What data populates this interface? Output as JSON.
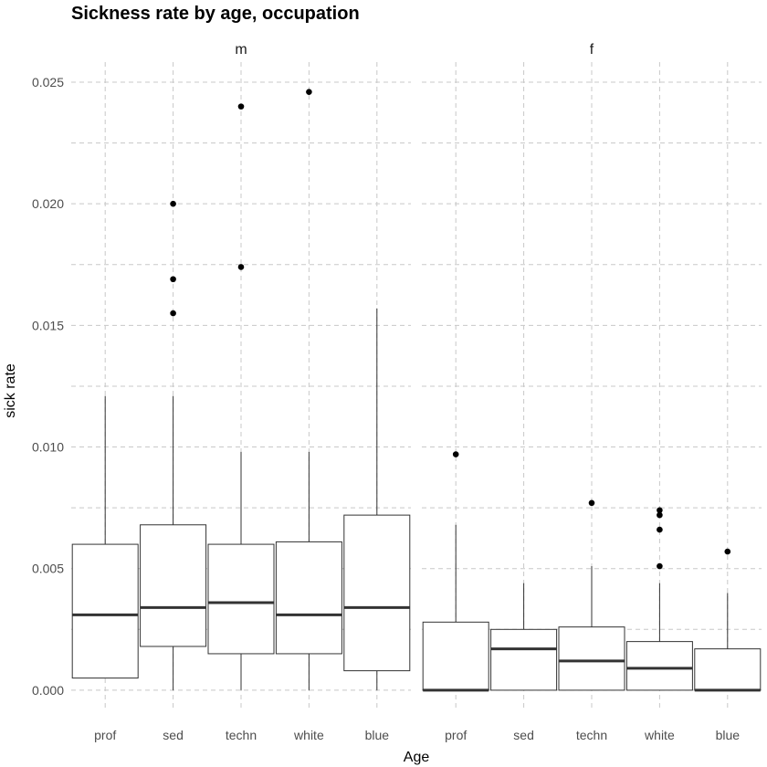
{
  "chart_data": {
    "type": "boxplot",
    "title": "Sickness rate by age, occupation",
    "xlabel": "Age",
    "ylabel": "sick rate",
    "ylim": [
      -0.0003,
      0.0252
    ],
    "y_ticks": [
      0.0,
      0.005,
      0.01,
      0.015,
      0.02,
      0.025
    ],
    "y_tick_labels": [
      "0.000",
      "0.005",
      "0.010",
      "0.015",
      "0.020",
      "0.025"
    ],
    "grid": true,
    "categories": [
      "prof",
      "sed",
      "techn",
      "white",
      "blue"
    ],
    "facets": [
      {
        "label": "m",
        "boxes": [
          {
            "category": "prof",
            "whisker_low": 0.0005,
            "q1": 0.0005,
            "median": 0.0031,
            "q3": 0.006,
            "whisker_high": 0.0121,
            "outliers": []
          },
          {
            "category": "sed",
            "whisker_low": 0.0,
            "q1": 0.0018,
            "median": 0.0034,
            "q3": 0.0068,
            "whisker_high": 0.0121,
            "outliers": [
              0.0155,
              0.0169,
              0.02
            ]
          },
          {
            "category": "techn",
            "whisker_low": 0.0,
            "q1": 0.0015,
            "median": 0.0036,
            "q3": 0.006,
            "whisker_high": 0.0098,
            "outliers": [
              0.0174,
              0.024
            ]
          },
          {
            "category": "white",
            "whisker_low": 0.0,
            "q1": 0.0015,
            "median": 0.0031,
            "q3": 0.0061,
            "whisker_high": 0.0098,
            "outliers": [
              0.0246
            ]
          },
          {
            "category": "blue",
            "whisker_low": 0.0,
            "q1": 0.0008,
            "median": 0.0034,
            "q3": 0.0072,
            "whisker_high": 0.0157,
            "outliers": []
          }
        ]
      },
      {
        "label": "f",
        "boxes": [
          {
            "category": "prof",
            "whisker_low": 0.0,
            "q1": 0.0,
            "median": 0.0,
            "q3": 0.0028,
            "whisker_high": 0.0068,
            "outliers": [
              0.0097
            ]
          },
          {
            "category": "sed",
            "whisker_low": 0.0,
            "q1": 0.0,
            "median": 0.0017,
            "q3": 0.0025,
            "whisker_high": 0.0044,
            "outliers": []
          },
          {
            "category": "techn",
            "whisker_low": 0.0,
            "q1": 0.0,
            "median": 0.0012,
            "q3": 0.0026,
            "whisker_high": 0.0051,
            "outliers": [
              0.0077
            ]
          },
          {
            "category": "white",
            "whisker_low": 0.0,
            "q1": 0.0,
            "median": 0.0009,
            "q3": 0.002,
            "whisker_high": 0.0044,
            "outliers": [
              0.0051,
              0.0066,
              0.0072,
              0.0074
            ]
          },
          {
            "category": "blue",
            "whisker_low": 0.0,
            "q1": 0.0,
            "median": 0.0,
            "q3": 0.0017,
            "whisker_high": 0.004,
            "outliers": [
              0.0057
            ]
          }
        ]
      }
    ]
  }
}
